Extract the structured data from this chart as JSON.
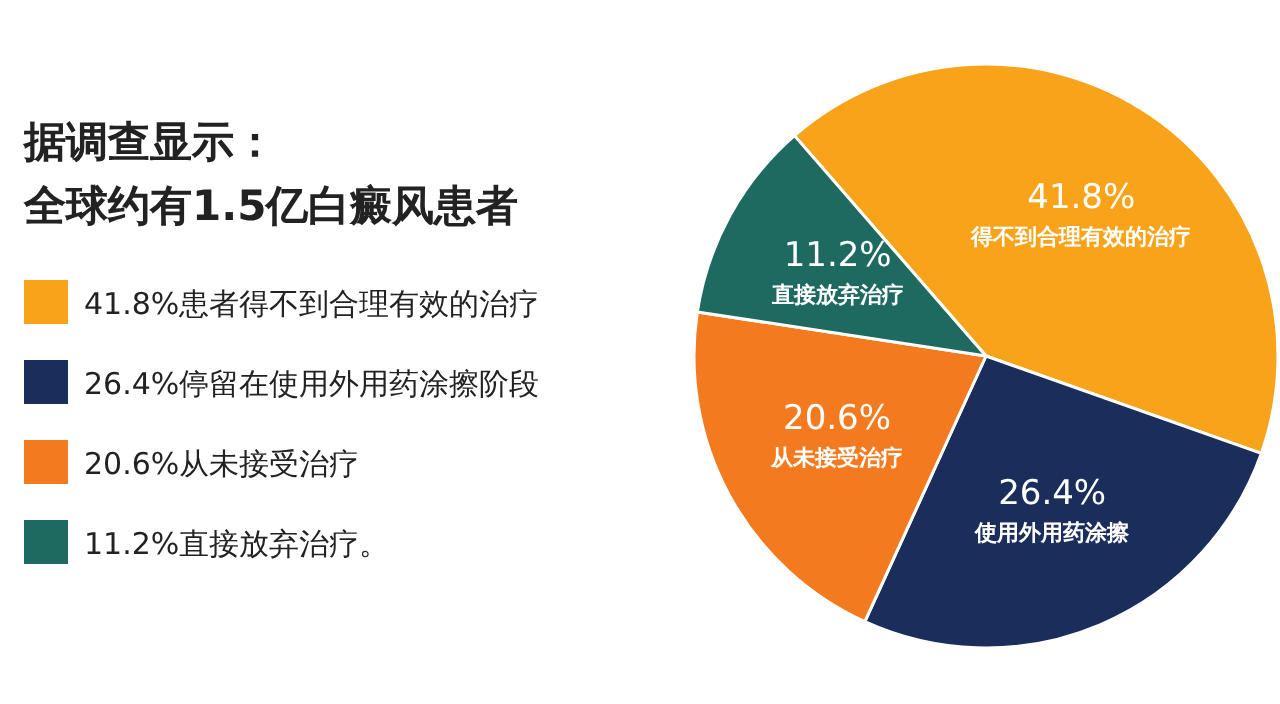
{
  "chart_data": {
    "type": "pie",
    "title": "据调查显示：",
    "subtitle": "全球约有1.5亿白癜风患者",
    "categories": [
      "41.8%患者得不到合理有效的治疗",
      "26.4%停留在使用外用药涂擦阶段",
      "20.6%从未接受治疗",
      "11.2%直接放弃治疗。"
    ],
    "values": [
      41.8,
      26.4,
      20.6,
      11.2
    ],
    "colors": [
      "#f9a31a",
      "#1b2d5b",
      "#f47a20",
      "#1f6a60"
    ],
    "value_labels": [
      "41.8%",
      "26.4%",
      "20.6%",
      "11.2%"
    ],
    "annotations": [
      {
        "text": "得不到合理有效的治疗",
        "x": "41.8%患者得不到合理有效的治疗"
      },
      {
        "text": "使用外用药涂擦",
        "x": "26.4%停留在使用外用药涂擦阶段"
      },
      {
        "text": "从未接受治疗",
        "x": "20.6%从未接受治疗"
      },
      {
        "text": "直接放弃治疗",
        "x": "11.2%直接放弃治疗。"
      }
    ],
    "legend": "left"
  }
}
